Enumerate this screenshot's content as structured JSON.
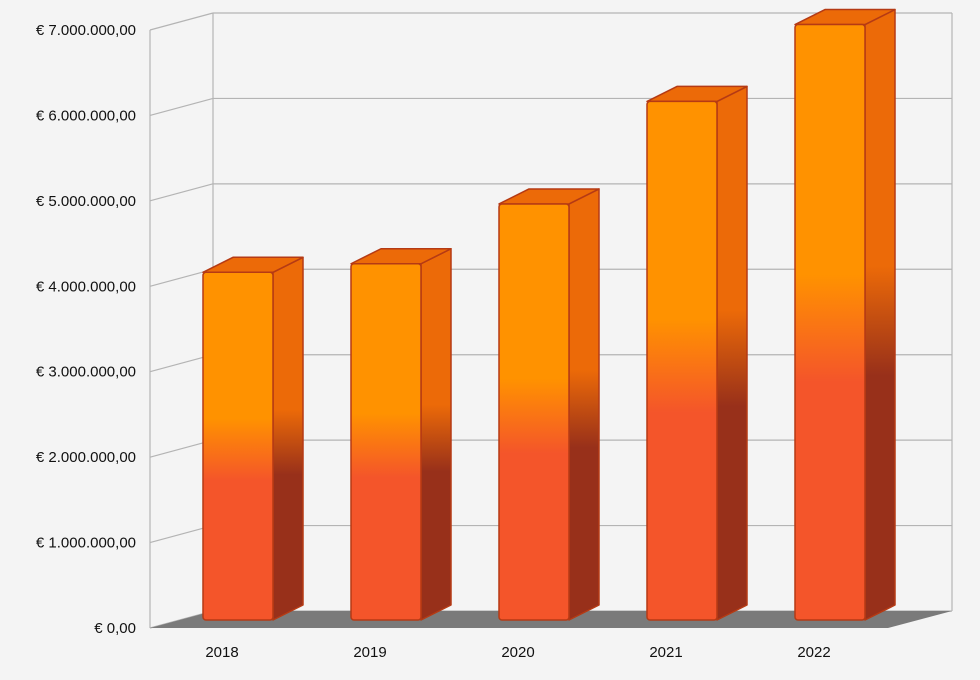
{
  "chart_data": {
    "type": "bar",
    "three_d": true,
    "categories": [
      "2018",
      "2019",
      "2020",
      "2021",
      "2022"
    ],
    "values": [
      4000000,
      4100000,
      4800000,
      6000000,
      6900000
    ],
    "ylim": [
      0,
      7000000
    ],
    "yticks": [
      0,
      1000000,
      2000000,
      3000000,
      4000000,
      5000000,
      6000000,
      7000000
    ],
    "ytick_labels": [
      "€ 0,00",
      "€ 1.000.000,00",
      "€ 2.000.000,00",
      "€ 3.000.000,00",
      "€ 4.000.000,00",
      "€ 5.000.000,00",
      "€ 6.000.000,00",
      "€ 7.000.000,00"
    ],
    "grid": true,
    "legend": "none",
    "colors": {
      "bar_top": "#ff9200",
      "bar_bottom": "#f4552a",
      "bar_side_top": "#ec6a08",
      "bar_side_bottom": "#98301a",
      "bar_outline": "#b53a14",
      "floor": "#7a7a7a",
      "grid": "#b4b4b4",
      "background": "#f4f4f4"
    }
  }
}
